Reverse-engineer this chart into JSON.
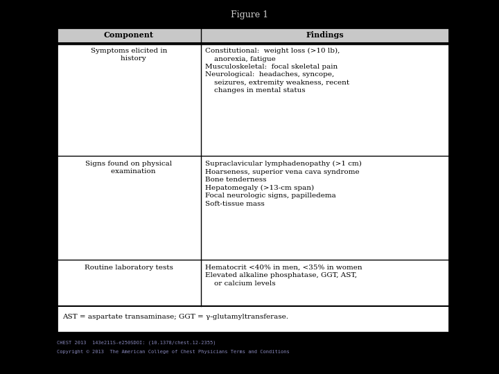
{
  "title": "Figure 1",
  "background_color": "#000000",
  "table_bg": "#ffffff",
  "header_bg": "#c8c8c8",
  "header_text_color": "#000000",
  "cell_text_color": "#000000",
  "table_border_color": "#000000",
  "title_color": "#d0d0d0",
  "footer_color": "#8888bb",
  "col1_header": "Component",
  "col2_header": "Findings",
  "rows": [
    {
      "component": "Symptoms elicited in\n    history",
      "findings": "Constitutional:  weight loss (>10 lb),\n    anorexia, fatigue\nMusculoskeletal:  focal skeletal pain\nNeurological:  headaches, syncope,\n    seizures, extremity weakness, recent\n    changes in mental status"
    },
    {
      "component": "Signs found on physical\n    examination",
      "findings": "Supraclavicular lymphadenopathy (>1 cm)\nHoarseness, superior vena cava syndrome\nBone tenderness\nHepatomegaly (>13-cm span)\nFocal neurologic signs, papilledema\nSoft-tissue mass"
    },
    {
      "component": "Routine laboratory tests",
      "findings": "Hematocrit <40% in men, <35% in women\nElevated alkaline phosphatase, GGT, AST,\n    or calcium levels"
    }
  ],
  "footnote": "AST = aspartate transaminase; GGT = γ-glutamyltransferase.",
  "footer_line1": "CHEST 2013  143e211S-e250SDOI: (10.1378/chest.12-2355)",
  "footer_line2": "Copyright © 2013  The American College of Chest Physicians Terms and Conditions"
}
